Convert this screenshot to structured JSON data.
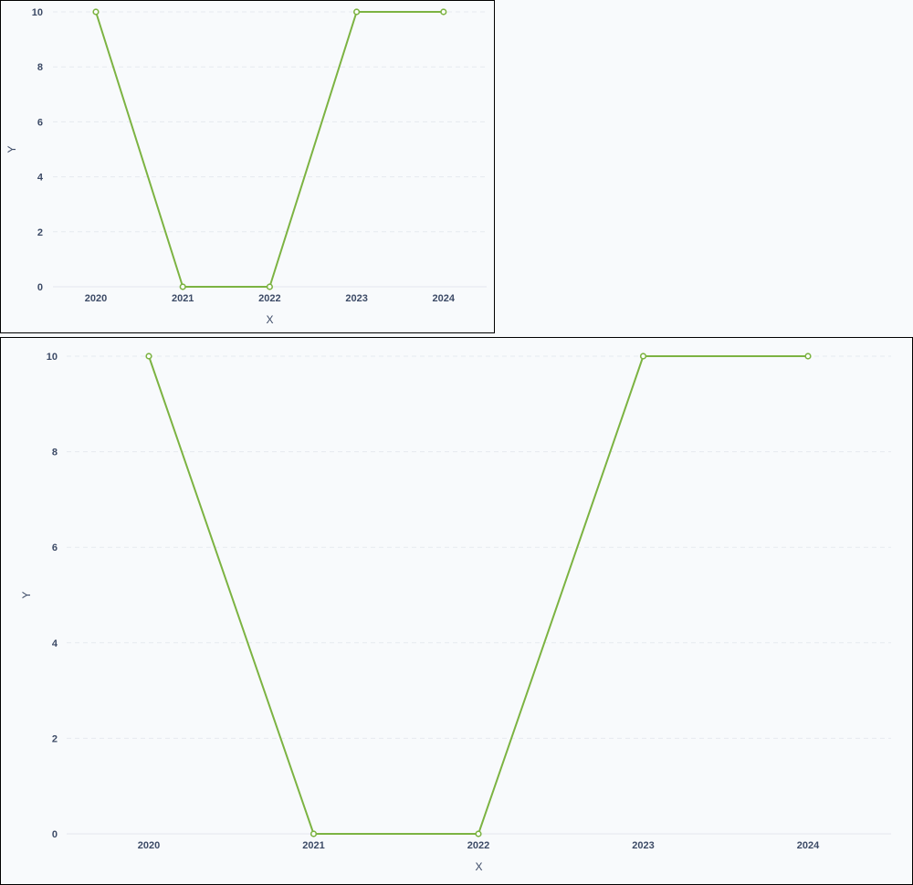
{
  "chart_data": [
    {
      "type": "line",
      "categories": [
        "2020",
        "2021",
        "2022",
        "2023",
        "2024"
      ],
      "series": [
        {
          "values": [
            10,
            0,
            0,
            10,
            10
          ]
        }
      ],
      "xlabel": "X",
      "ylabel": "Y",
      "ylim": [
        0,
        10
      ],
      "yticks": [
        "0",
        "2",
        "4",
        "6",
        "8",
        "10"
      ],
      "grid": true,
      "color": "#7cb342"
    },
    {
      "type": "line",
      "categories": [
        "2020",
        "2021",
        "2022",
        "2023",
        "2024"
      ],
      "series": [
        {
          "values": [
            10,
            0,
            0,
            10,
            10
          ]
        }
      ],
      "xlabel": "X",
      "ylabel": "Y",
      "ylim": [
        0,
        10
      ],
      "yticks": [
        "0",
        "2",
        "4",
        "6",
        "8",
        "10"
      ],
      "grid": true,
      "color": "#7cb342"
    }
  ]
}
